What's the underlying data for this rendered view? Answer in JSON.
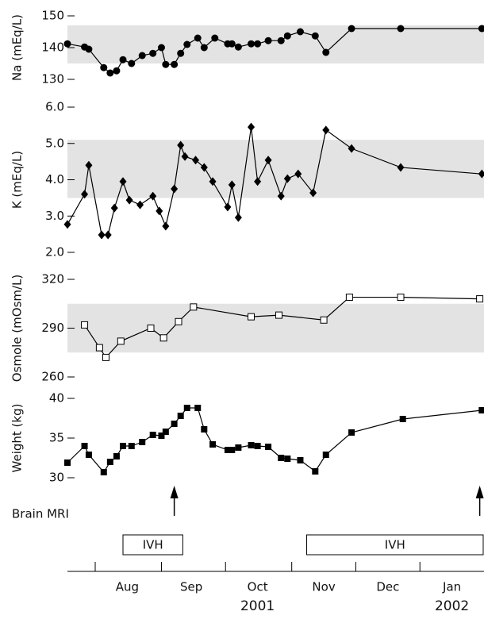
{
  "chart_data": [
    {
      "type": "line",
      "ylabel": "Na (mEq/L)",
      "ylim": [
        130,
        150
      ],
      "yticks": [
        130,
        140,
        150
      ],
      "band": [
        135,
        147
      ],
      "band_color": "#e3e3e3",
      "series": [
        {
          "marker": "circle",
          "color": "#000000",
          "x": [
            200,
            208,
            210,
            217,
            220,
            223,
            226,
            230,
            235,
            240,
            244,
            246,
            250,
            253,
            256,
            261,
            264,
            269,
            275,
            277,
            280,
            286,
            289,
            294,
            300,
            303,
            309,
            316,
            321,
            333,
            356,
            394
          ],
          "values": [
            141.2,
            140.2,
            139.5,
            133.7,
            132,
            132.7,
            136.2,
            135,
            137.5,
            138.2,
            140,
            134.7,
            134.7,
            138.2,
            141,
            143,
            140,
            143,
            141.2,
            141.2,
            140.2,
            141.2,
            141.2,
            142.2,
            142.2,
            143.7,
            145,
            143.7,
            138.5,
            146,
            146,
            146
          ]
        }
      ]
    },
    {
      "type": "line",
      "ylabel": "K (mEq/L)",
      "ylim": [
        2,
        6
      ],
      "yticks": [
        {
          "value": 2,
          "label": "2.0"
        },
        {
          "value": 3,
          "label": "3.0"
        },
        {
          "value": 4,
          "label": "4.0"
        },
        {
          "value": 5,
          "label": "5.0"
        },
        {
          "value": 6,
          "label": "6.0"
        }
      ],
      "band": [
        3.5,
        5.1
      ],
      "band_color": "#e3e3e3",
      "series": [
        {
          "marker": "diamond",
          "color": "#000000",
          "x": [
            200,
            208,
            210,
            216,
            219,
            222,
            226,
            229,
            234,
            240,
            243,
            246,
            250,
            253,
            255,
            260,
            264,
            268,
            275,
            277,
            280,
            286,
            289,
            294,
            300,
            303,
            308,
            315,
            321,
            333,
            356,
            394
          ],
          "values": [
            2.77,
            3.6,
            4.4,
            2.48,
            2.48,
            3.22,
            3.95,
            3.44,
            3.31,
            3.55,
            3.14,
            2.72,
            3.75,
            4.95,
            4.64,
            4.54,
            4.34,
            3.95,
            3.25,
            3.86,
            2.96,
            5.45,
            3.95,
            4.54,
            3.55,
            4.03,
            4.16,
            3.64,
            5.37,
            4.86,
            4.34,
            4.16
          ]
        }
      ]
    },
    {
      "type": "line",
      "ylabel": "Osmole (mOsm/L)",
      "ylim": [
        260,
        320
      ],
      "yticks": [
        260,
        290,
        320
      ],
      "band": [
        275,
        305
      ],
      "band_color": "#e3e3e3",
      "series": [
        {
          "marker": "open-square",
          "color": "#000000",
          "x": [
            208,
            215,
            218,
            225,
            239,
            245,
            252,
            259,
            286,
            299,
            320,
            332,
            356,
            393
          ],
          "values": [
            292,
            278,
            272,
            282,
            290,
            284,
            294,
            303,
            297,
            298,
            295,
            309,
            309,
            308
          ]
        }
      ]
    },
    {
      "type": "line",
      "ylabel": "Weight (kg)",
      "ylim": [
        30,
        40
      ],
      "yticks": [
        30,
        35,
        40
      ],
      "series": [
        {
          "marker": "square",
          "color": "#000000",
          "x": [
            200,
            208,
            210,
            217,
            220,
            223,
            226,
            230,
            235,
            240,
            244,
            246,
            250,
            253,
            256,
            261,
            264,
            268,
            275,
            277,
            280,
            286,
            289,
            294,
            300,
            303,
            309,
            316,
            321,
            333,
            357,
            394
          ],
          "values": [
            31.9,
            34,
            32.9,
            30.7,
            32,
            32.7,
            34,
            34,
            34.5,
            35.4,
            35.3,
            35.8,
            36.8,
            37.8,
            38.8,
            38.8,
            36.1,
            34.2,
            33.5,
            33.5,
            33.8,
            34.1,
            34,
            33.9,
            32.5,
            32.4,
            32.2,
            30.8,
            32.9,
            35.7,
            37.4,
            38.5
          ]
        }
      ]
    }
  ],
  "x_axis": {
    "xlim": [
      200,
      395
    ],
    "month_boundaries": [
      213,
      244,
      274,
      305,
      335,
      365
    ],
    "xticks": [
      {
        "value": 228,
        "label": "Aug"
      },
      {
        "value": 258,
        "label": "Sep"
      },
      {
        "value": 289,
        "label": "Oct"
      },
      {
        "value": 320,
        "label": "Nov"
      },
      {
        "value": 350,
        "label": "Dec"
      },
      {
        "value": 380,
        "label": "Jan"
      }
    ],
    "year_labels": [
      {
        "value": 289,
        "label": "2001"
      },
      {
        "value": 380,
        "label": "2002"
      }
    ]
  },
  "annotations": {
    "brain_mri": {
      "label": "Brain MRI",
      "x": [
        250,
        393
      ]
    },
    "ivh": [
      {
        "label": "IVH",
        "x": [
          226,
          254
        ]
      },
      {
        "label": "IVH",
        "x": [
          312,
          395
        ]
      }
    ]
  }
}
